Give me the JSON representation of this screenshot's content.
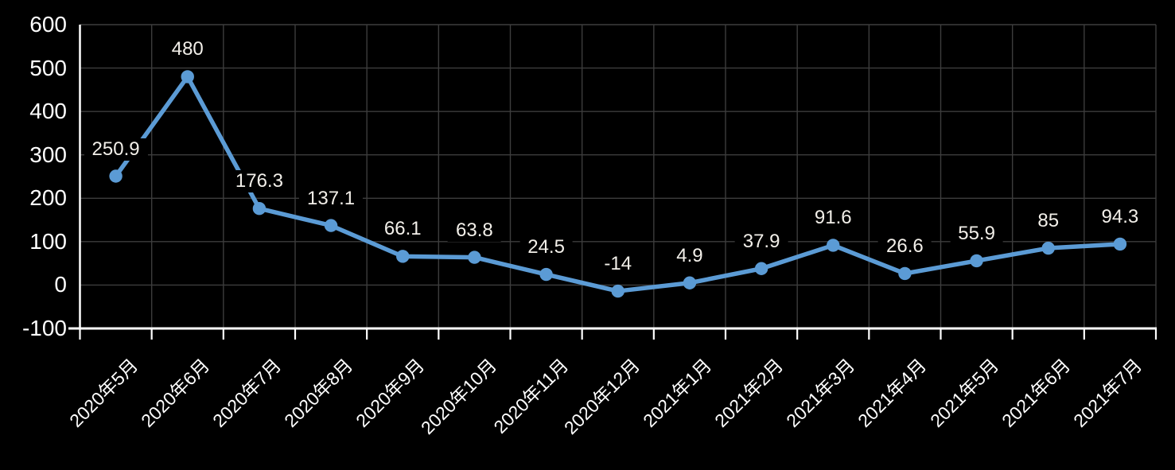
{
  "chart_data": {
    "type": "line",
    "title": "",
    "xlabel": "",
    "ylabel": "",
    "categories": [
      "2020年5月",
      "2020年6月",
      "2020年7月",
      "2020年8月",
      "2020年9月",
      "2020年10月",
      "2020年11月",
      "2020年12月",
      "2021年1月",
      "2021年2月",
      "2021年3月",
      "2021年4月",
      "2021年5月",
      "2021年6月",
      "2021年7月"
    ],
    "series": [
      {
        "name": "",
        "values": [
          250.9,
          480,
          176.3,
          137.1,
          66.1,
          63.8,
          24.5,
          -14,
          4.9,
          37.9,
          91.6,
          26.6,
          55.9,
          85,
          94.3
        ]
      }
    ],
    "data_labels": [
      "250.9",
      "480",
      "176.3",
      "137.1",
      "66.1",
      "63.8",
      "24.5",
      "-14",
      "4.9",
      "37.9",
      "91.6",
      "26.6",
      "55.9",
      "85",
      "94.3"
    ],
    "ylim": [
      -100,
      600
    ],
    "yticks": [
      600,
      500,
      400,
      300,
      200,
      100,
      0,
      -100
    ],
    "grid": true,
    "legend": "none",
    "marker": "circle",
    "x_labels_rotation_deg": -45
  },
  "style": {
    "background": "#000000",
    "line_color": "#5B9BD5",
    "marker_color": "#5B9BD5",
    "gridline_color": "#3D3D3D",
    "axis_color": "#FFFFFF",
    "axis_label_color": "#FFFFFF",
    "data_label_color": "#F2EFE9",
    "data_label_background": "#000000"
  }
}
